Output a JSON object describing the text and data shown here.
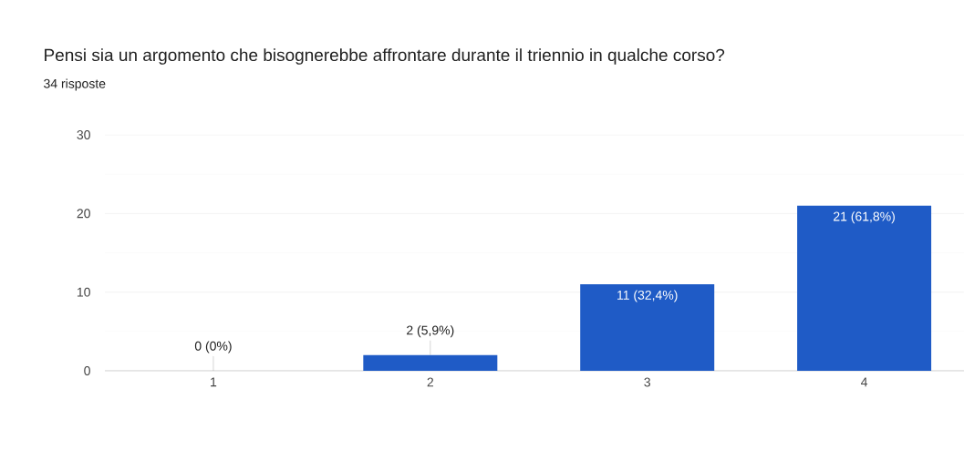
{
  "chart_data": {
    "type": "bar",
    "title": "Pensi sia un argomento che bisognerebbe affrontare durante il triennio in qualche corso?",
    "subtitle": "34 risposte",
    "categories": [
      "1",
      "2",
      "3",
      "4"
    ],
    "values": [
      0,
      2,
      11,
      21
    ],
    "value_labels": [
      "0 (0%)",
      "2 (5,9%)",
      "11 (32,4%)",
      "21 (61,8%)"
    ],
    "color": "#1f5bc6",
    "ylim": [
      0,
      30
    ],
    "yticks": [
      0,
      10,
      20,
      30
    ],
    "grid": "y"
  }
}
